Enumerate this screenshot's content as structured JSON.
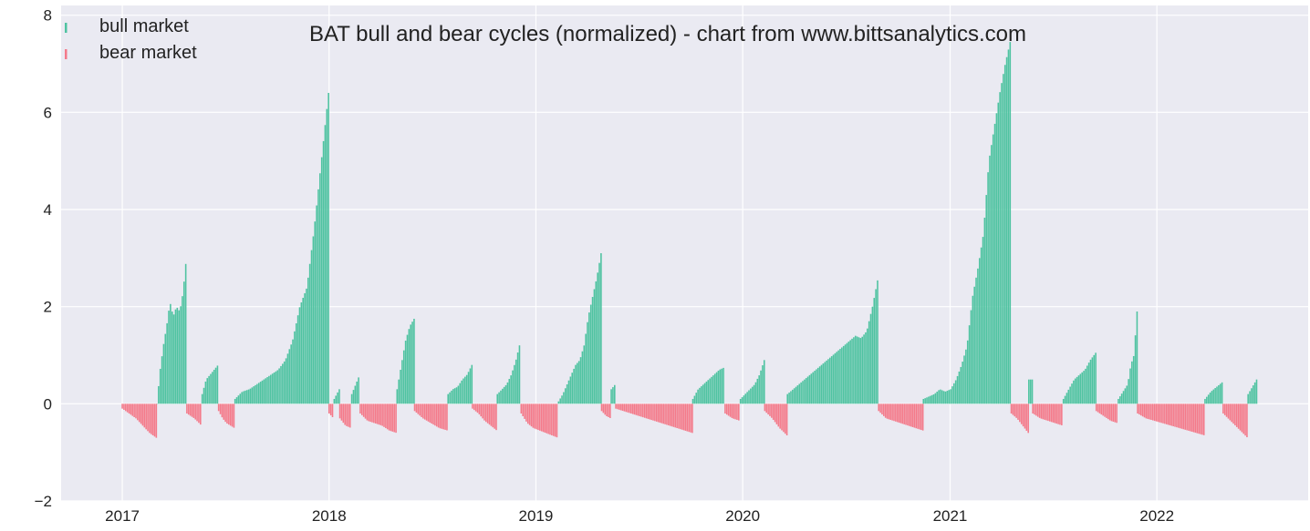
{
  "chart_data": {
    "type": "bar",
    "title": "BAT bull and bear cycles (normalized)  - chart from www.bittsanalytics.com",
    "xlabel": "",
    "ylabel": "",
    "ylim": [
      -2,
      8.2
    ],
    "xlim": [
      "2016-09-15",
      "2022-09-25"
    ],
    "x_ticks": [
      "2017",
      "2018",
      "2019",
      "2020",
      "2021",
      "2022"
    ],
    "y_ticks": [
      -2,
      0,
      2,
      4,
      6,
      8
    ],
    "grid": true,
    "legend": "top-left",
    "series": [
      {
        "name": "bull market",
        "color": "#4fc3a1",
        "segments": [
          {
            "start": "2017-03-03",
            "end": "2017-04-24",
            "values": [
              0.0,
              0.7,
              1.2,
              1.6,
              2.1,
              1.8,
              2.0,
              1.9,
              2.3,
              3.0
            ]
          },
          {
            "start": "2017-05-22",
            "end": "2017-06-19",
            "values": [
              0.2,
              0.5,
              0.6,
              0.7,
              0.8
            ]
          },
          {
            "start": "2017-07-19",
            "end": "2017-12-31",
            "values": [
              0.1,
              0.25,
              0.3,
              0.4,
              0.5,
              0.6,
              0.7,
              0.9,
              1.3,
              2.0,
              2.4,
              3.6,
              5.0,
              6.4
            ]
          },
          {
            "start": "2018-01-10",
            "end": "2018-01-19",
            "values": [
              0.1,
              0.3
            ]
          },
          {
            "start": "2018-02-10",
            "end": "2018-02-24",
            "values": [
              0.2,
              0.4,
              0.6
            ]
          },
          {
            "start": "2018-05-01",
            "end": "2018-05-31",
            "values": [
              0.3,
              0.8,
              1.3,
              1.6,
              1.75
            ]
          },
          {
            "start": "2018-07-30",
            "end": "2018-09-10",
            "values": [
              0.2,
              0.3,
              0.35,
              0.5,
              0.6,
              0.8
            ]
          },
          {
            "start": "2018-10-25",
            "end": "2018-12-05",
            "values": [
              0.2,
              0.3,
              0.4,
              0.6,
              0.9,
              1.3
            ]
          },
          {
            "start": "2019-02-10",
            "end": "2019-04-26",
            "values": [
              0.05,
              0.2,
              0.4,
              0.6,
              0.8,
              0.9,
              1.2,
              1.8,
              2.2,
              2.6,
              3.1
            ]
          },
          {
            "start": "2019-05-14",
            "end": "2019-05-21",
            "values": [
              0.3,
              0.4
            ]
          },
          {
            "start": "2019-10-05",
            "end": "2019-11-30",
            "values": [
              0.1,
              0.3,
              0.4,
              0.5,
              0.6,
              0.7,
              0.75
            ]
          },
          {
            "start": "2019-12-28",
            "end": "2020-02-08",
            "values": [
              0.1,
              0.2,
              0.3,
              0.4,
              0.6,
              0.9
            ]
          },
          {
            "start": "2020-03-20",
            "end": "2020-08-27",
            "values": [
              0.2,
              0.3,
              0.4,
              0.5,
              0.6,
              0.7,
              0.8,
              0.9,
              1.0,
              1.1,
              1.2,
              1.3,
              1.4,
              1.35,
              1.5,
              2.0,
              2.6
            ]
          },
          {
            "start": "2020-11-15",
            "end": "2021-04-18",
            "values": [
              0.1,
              0.15,
              0.2,
              0.3,
              0.25,
              0.3,
              0.5,
              0.8,
              1.2,
              2.2,
              2.8,
              3.5,
              5.0,
              5.7,
              6.4,
              7.0,
              7.5
            ]
          },
          {
            "start": "2021-05-20",
            "end": "2021-05-26",
            "values": [
              0.5
            ]
          },
          {
            "start": "2021-07-20",
            "end": "2021-09-15",
            "values": [
              0.1,
              0.3,
              0.5,
              0.6,
              0.7,
              0.9,
              1.05
            ]
          },
          {
            "start": "2021-10-25",
            "end": "2021-11-27",
            "values": [
              0.1,
              0.2,
              0.3,
              0.4,
              0.8,
              1.0,
              1.9
            ]
          },
          {
            "start": "2022-03-27",
            "end": "2022-04-27",
            "values": [
              0.1,
              0.25,
              0.35,
              0.45
            ]
          },
          {
            "start": "2022-06-11",
            "end": "2022-06-26",
            "values": [
              0.2,
              0.35,
              0.5
            ]
          }
        ]
      },
      {
        "name": "bear market",
        "color": "#f47a8a",
        "segments": [
          {
            "start": "2017-01-01",
            "end": "2017-03-02",
            "values": [
              -0.1,
              -0.2,
              -0.3,
              -0.45,
              -0.6,
              -0.7
            ]
          },
          {
            "start": "2017-04-25",
            "end": "2017-05-21",
            "values": [
              -0.2,
              -0.3,
              -0.45
            ]
          },
          {
            "start": "2017-06-20",
            "end": "2017-07-18",
            "values": [
              -0.15,
              -0.3,
              -0.4,
              -0.45,
              -0.5
            ]
          },
          {
            "start": "2018-01-01",
            "end": "2018-01-09",
            "values": [
              -0.2,
              -0.3
            ]
          },
          {
            "start": "2018-01-20",
            "end": "2018-02-09",
            "values": [
              -0.3,
              -0.45,
              -0.5
            ]
          },
          {
            "start": "2018-02-25",
            "end": "2018-04-30",
            "values": [
              -0.2,
              -0.35,
              -0.4,
              -0.45,
              -0.55,
              -0.6
            ]
          },
          {
            "start": "2018-06-01",
            "end": "2018-07-29",
            "values": [
              -0.15,
              -0.3,
              -0.4,
              -0.5,
              -0.55
            ]
          },
          {
            "start": "2018-09-11",
            "end": "2018-10-24",
            "values": [
              -0.1,
              -0.2,
              -0.35,
              -0.45,
              -0.55
            ]
          },
          {
            "start": "2018-12-06",
            "end": "2019-02-09",
            "values": [
              -0.2,
              -0.4,
              -0.5,
              -0.55,
              -0.6,
              -0.65,
              -0.7
            ]
          },
          {
            "start": "2019-04-27",
            "end": "2019-05-13",
            "values": [
              -0.15,
              -0.25,
              -0.3
            ]
          },
          {
            "start": "2019-05-22",
            "end": "2019-10-04",
            "values": [
              -0.1,
              -0.15,
              -0.2,
              -0.25,
              -0.3,
              -0.35,
              -0.4,
              -0.45,
              -0.5,
              -0.55,
              -0.6
            ]
          },
          {
            "start": "2019-12-01",
            "end": "2019-12-27",
            "values": [
              -0.2,
              -0.3,
              -0.35
            ]
          },
          {
            "start": "2020-02-09",
            "end": "2020-03-19",
            "values": [
              -0.15,
              -0.3,
              -0.5,
              -0.65
            ]
          },
          {
            "start": "2020-08-28",
            "end": "2020-11-14",
            "values": [
              -0.15,
              -0.3,
              -0.35,
              -0.4,
              -0.45,
              -0.5,
              -0.55
            ]
          },
          {
            "start": "2021-04-19",
            "end": "2021-05-19",
            "values": [
              -0.2,
              -0.3,
              -0.45,
              -0.6
            ]
          },
          {
            "start": "2021-05-27",
            "end": "2021-07-19",
            "values": [
              -0.2,
              -0.3,
              -0.35,
              -0.4,
              -0.45
            ]
          },
          {
            "start": "2021-09-16",
            "end": "2021-10-24",
            "values": [
              -0.15,
              -0.25,
              -0.35,
              -0.4
            ]
          },
          {
            "start": "2021-11-28",
            "end": "2022-03-26",
            "values": [
              -0.2,
              -0.3,
              -0.35,
              -0.4,
              -0.45,
              -0.5,
              -0.55,
              -0.6,
              -0.65
            ]
          },
          {
            "start": "2022-04-28",
            "end": "2022-06-10",
            "values": [
              -0.2,
              -0.3,
              -0.4,
              -0.5,
              -0.6,
              -0.7
            ]
          }
        ]
      }
    ]
  }
}
